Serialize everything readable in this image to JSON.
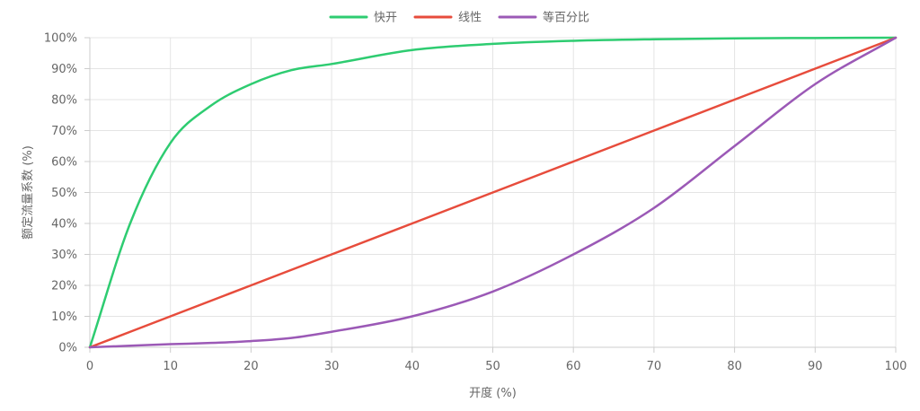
{
  "chart_data": {
    "type": "line",
    "xlabel": "开度 (%)",
    "ylabel": "额定流量系数 (%)",
    "xlim": [
      0,
      100
    ],
    "ylim": [
      0,
      100
    ],
    "x_ticks": [
      0,
      10,
      20,
      30,
      40,
      50,
      60,
      70,
      80,
      90,
      100
    ],
    "y_ticks": [
      0,
      10,
      20,
      30,
      40,
      50,
      60,
      70,
      80,
      90,
      100
    ],
    "y_tick_suffix": "%",
    "grid": true,
    "legend_position": "top-center",
    "x": [
      0,
      5,
      10,
      15,
      20,
      25,
      30,
      40,
      50,
      60,
      70,
      80,
      90,
      100
    ],
    "series": [
      {
        "name": "快开",
        "color": "#2ecc71",
        "values": [
          0,
          40,
          66,
          78,
          85,
          89.5,
          91.5,
          96,
          98,
          99,
          99.5,
          99.8,
          99.9,
          100
        ]
      },
      {
        "name": "线性",
        "color": "#e74c3c",
        "values": [
          0,
          5,
          10,
          15,
          20,
          25,
          30,
          40,
          50,
          60,
          70,
          80,
          90,
          100
        ]
      },
      {
        "name": "等百分比",
        "color": "#9b59b6",
        "values": [
          0,
          0.5,
          1,
          1.4,
          2,
          3,
          5,
          10,
          18,
          30,
          45,
          65,
          85,
          100
        ]
      }
    ]
  }
}
